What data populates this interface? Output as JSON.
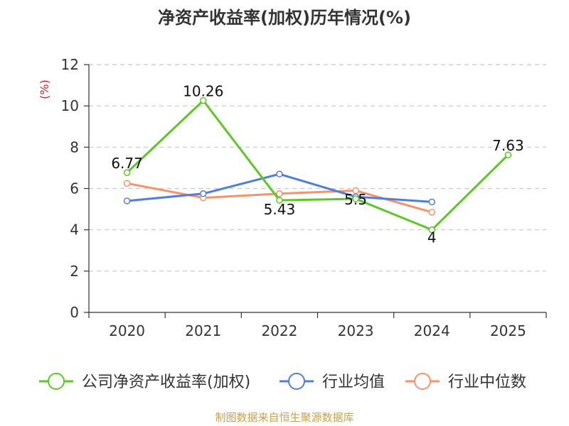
{
  "chart_data": {
    "type": "line",
    "title": "净资产收益率(加权)历年情况(%)",
    "ylabel": "(%)",
    "ylabel_color": "#e02020",
    "xlabel": "",
    "categories": [
      "2020",
      "2021",
      "2022",
      "2023",
      "2024",
      "2025"
    ],
    "ylim": [
      0,
      12
    ],
    "yticks": [
      0,
      2,
      4,
      6,
      8,
      10,
      12
    ],
    "grid": true,
    "legend_position": "bottom",
    "series": [
      {
        "name": "公司净资产收益率(加权)",
        "color": "#5cc823",
        "values": [
          6.77,
          10.26,
          5.43,
          5.5,
          4,
          7.63
        ],
        "labels": [
          "6.77",
          "10.26",
          "5.43",
          "5.5",
          "4",
          "7.63"
        ]
      },
      {
        "name": "行业均值",
        "color": "#4f7fdb",
        "values": [
          5.4,
          5.75,
          6.7,
          5.6,
          5.35,
          null
        ]
      },
      {
        "name": "行业中位数",
        "color": "#f5936a",
        "values": [
          6.25,
          5.55,
          5.75,
          5.9,
          4.85,
          null
        ]
      }
    ],
    "source": "制图数据来自恒生聚源数据库",
    "source_color": "#c9a24a"
  }
}
